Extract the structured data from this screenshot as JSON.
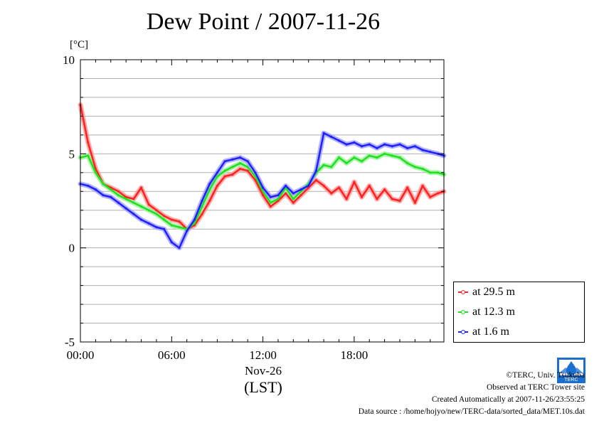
{
  "title": "Dew Point / 2007-11-26",
  "unit_label": "[°C]",
  "x_date_label": "Nov-26",
  "x_tz_label": "(LST)",
  "legend": [
    {
      "label": "at 29.5 m",
      "color": "#ff2020"
    },
    {
      "label": "at 12.3 m",
      "color": "#20e020"
    },
    {
      "label": "at 1.6 m",
      "color": "#2020ff"
    }
  ],
  "footer": {
    "copyright": "©TERC, Univ. Tsukuba",
    "observed": "Observed at TERC Tower site",
    "created": "Created Automatically at 2007-11-26/23:55:25",
    "source": "Data source : /home/hojyo/new/TERC-data/sorted_data/MET.10s.dat"
  },
  "logo_text": "TERC",
  "chart_data": {
    "type": "line",
    "title": "Dew Point / 2007-11-26",
    "ylabel": "[°C]",
    "xlabel": "Nov-26 (LST)",
    "xlim": [
      0,
      23.9
    ],
    "ylim": [
      -5,
      10
    ],
    "x_tick_values": [
      0,
      6,
      12,
      18
    ],
    "x_tick_labels": [
      "00:00",
      "06:00",
      "12:00",
      "18:00"
    ],
    "y_tick_values": [
      -5,
      0,
      5,
      10
    ],
    "y_tick_labels": [
      "-5",
      "0",
      "5",
      "10"
    ],
    "grid": true,
    "legend_position": "lower-right-outside",
    "x": [
      0,
      0.5,
      1,
      1.5,
      2,
      2.5,
      3,
      3.5,
      4,
      4.5,
      5,
      5.5,
      6,
      6.5,
      7,
      7.5,
      8,
      8.5,
      9,
      9.5,
      10,
      10.5,
      11,
      11.5,
      12,
      12.5,
      13,
      13.5,
      14,
      14.5,
      15,
      15.5,
      16,
      16.5,
      17,
      17.5,
      18,
      18.5,
      19,
      19.5,
      20,
      20.5,
      21,
      21.5,
      22,
      22.5,
      23,
      23.5,
      23.9
    ],
    "series": [
      {
        "name": "at 29.5 m",
        "color": "#ff2020",
        "values": [
          7.6,
          5.6,
          4.2,
          3.4,
          3.2,
          3.0,
          2.7,
          2.6,
          3.2,
          2.3,
          2.0,
          1.7,
          1.5,
          1.4,
          1.0,
          1.2,
          1.8,
          2.5,
          3.3,
          3.8,
          3.9,
          4.2,
          4.1,
          3.6,
          2.8,
          2.2,
          2.5,
          2.9,
          2.4,
          2.8,
          3.2,
          3.6,
          3.3,
          2.9,
          3.2,
          2.6,
          3.5,
          2.7,
          3.3,
          2.6,
          3.1,
          2.6,
          2.5,
          3.2,
          2.4,
          3.3,
          2.7,
          2.9,
          3.0
        ]
      },
      {
        "name": "at 12.3 m",
        "color": "#20e020",
        "values": [
          4.8,
          4.9,
          4.0,
          3.4,
          3.1,
          2.8,
          2.6,
          2.4,
          2.2,
          2.0,
          1.8,
          1.5,
          1.2,
          1.1,
          1.0,
          1.3,
          2.2,
          3.1,
          3.8,
          4.1,
          4.3,
          4.5,
          4.3,
          3.8,
          3.0,
          2.4,
          2.6,
          3.2,
          2.6,
          3.0,
          3.4,
          4.0,
          4.4,
          4.3,
          4.8,
          4.5,
          4.8,
          4.6,
          4.9,
          4.8,
          5.0,
          4.9,
          4.8,
          4.5,
          4.3,
          4.2,
          4.0,
          4.0,
          3.9
        ]
      },
      {
        "name": "at 1.6 m",
        "color": "#2020ff",
        "values": [
          3.4,
          3.3,
          3.1,
          2.8,
          2.7,
          2.4,
          2.1,
          1.8,
          1.5,
          1.3,
          1.1,
          1.0,
          0.3,
          0.0,
          0.9,
          1.5,
          2.5,
          3.4,
          4.0,
          4.6,
          4.7,
          4.8,
          4.6,
          4.0,
          3.2,
          2.7,
          2.8,
          3.3,
          2.9,
          3.1,
          3.3,
          4.1,
          6.1,
          5.9,
          5.7,
          5.5,
          5.6,
          5.4,
          5.5,
          5.3,
          5.5,
          5.4,
          5.5,
          5.3,
          5.4,
          5.2,
          5.1,
          5.0,
          4.9
        ]
      }
    ]
  }
}
